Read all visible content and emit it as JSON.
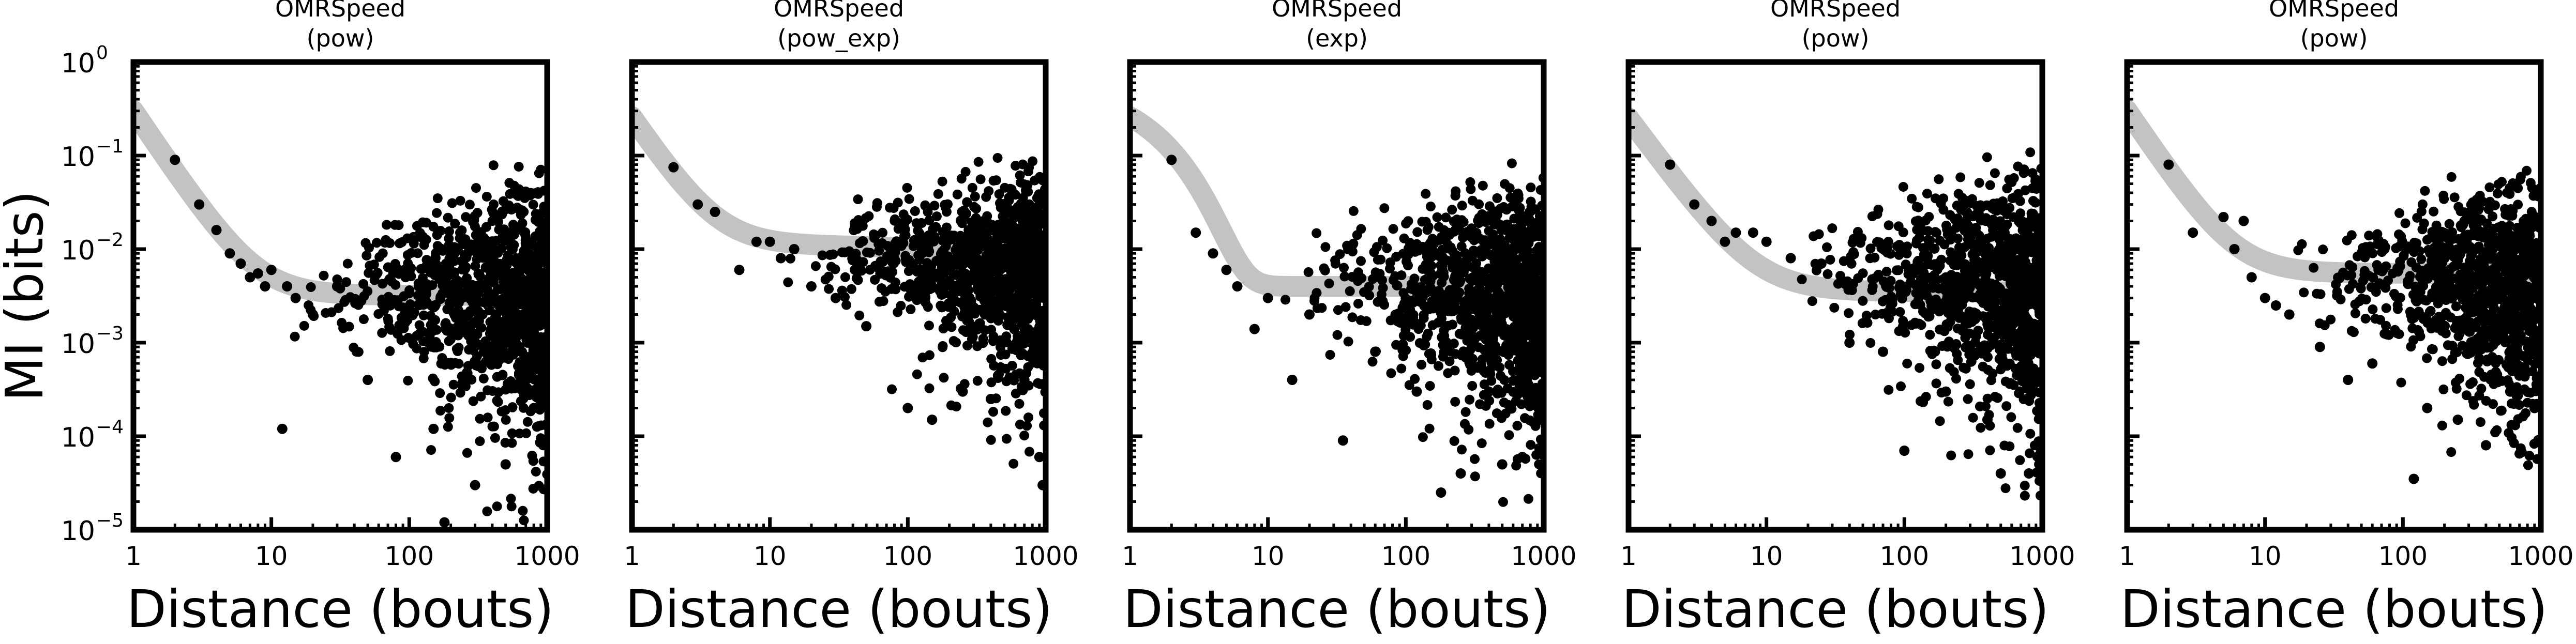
{
  "chart_data": [
    {
      "type": "scatter",
      "title": "OMRSpeed",
      "subtitle": "(pow)",
      "xlabel": "Distance (bouts)",
      "ylabel": "MI (bits)",
      "x_scale": "log",
      "y_scale": "log",
      "xlim": [
        1,
        1000
      ],
      "ylim": [
        1e-05,
        1
      ],
      "x_ticks": [
        "1",
        "10",
        "100",
        "1000"
      ],
      "y_ticks": [
        "10^0",
        "10^-1",
        "10^-2",
        "10^-3",
        "10^-4",
        "10^-5"
      ],
      "grid": false,
      "fit": {
        "form": "pow",
        "a": 0.3,
        "b": 2.2,
        "c": 0.0032
      },
      "scatter": {
        "seed": 11,
        "plateau": 0.0032,
        "spread": 0.45,
        "tail": 0.3
      },
      "points": [
        [
          2,
          0.09
        ],
        [
          3,
          0.03
        ],
        [
          4,
          0.016
        ],
        [
          5,
          0.009
        ],
        [
          6,
          0.007
        ],
        [
          7,
          0.005
        ],
        [
          8,
          0.0055
        ],
        [
          9,
          0.004
        ],
        [
          10,
          0.006
        ],
        [
          12,
          0.00012
        ],
        [
          13,
          0.004
        ],
        [
          15,
          0.003
        ],
        [
          20,
          0.002
        ],
        [
          30,
          0.004
        ],
        [
          50,
          0.0004
        ],
        [
          80,
          6e-05
        ],
        [
          150,
          0.00012
        ],
        [
          180,
          1.2e-05
        ],
        [
          300,
          3e-05
        ],
        [
          500,
          5e-05
        ],
        [
          800,
          0.0002
        ]
      ]
    },
    {
      "type": "scatter",
      "title": "OMRSpeed",
      "subtitle": "(pow_exp)",
      "xlabel": "Distance (bouts)",
      "ylabel": "",
      "x_scale": "log",
      "y_scale": "log",
      "xlim": [
        1,
        1000
      ],
      "ylim": [
        1e-05,
        1
      ],
      "x_ticks": [
        "1",
        "10",
        "100",
        "1000"
      ],
      "y_ticks": [
        "",
        "",
        "",
        "",
        "",
        ""
      ],
      "grid": false,
      "fit": {
        "form": "pow_exp",
        "a": 0.25,
        "b": 2.2,
        "c": 0.011,
        "decay": 1400
      },
      "scatter": {
        "seed": 23,
        "plateau": 0.008,
        "spread": 0.35,
        "tail": 0.35
      },
      "points": [
        [
          2,
          0.075
        ],
        [
          3,
          0.03
        ],
        [
          4,
          0.025
        ],
        [
          6,
          0.006
        ],
        [
          8,
          0.012
        ],
        [
          10,
          0.012
        ],
        [
          12,
          0.008
        ],
        [
          15,
          0.01
        ],
        [
          20,
          0.004
        ],
        [
          30,
          0.003
        ],
        [
          50,
          0.0015
        ],
        [
          100,
          0.0002
        ],
        [
          150,
          0.00015
        ],
        [
          250,
          0.0003
        ],
        [
          400,
          0.00025
        ],
        [
          700,
          0.0004
        ],
        [
          900,
          6e-05
        ],
        [
          950,
          3e-05
        ]
      ]
    },
    {
      "type": "scatter",
      "title": "OMRSpeed",
      "subtitle": "(exp)",
      "xlabel": "Distance (bouts)",
      "ylabel": "",
      "x_scale": "log",
      "y_scale": "log",
      "xlim": [
        1,
        1000
      ],
      "ylim": [
        1e-05,
        1
      ],
      "x_ticks": [
        "1",
        "10",
        "100",
        "1000"
      ],
      "y_ticks": [
        "",
        "",
        "",
        "",
        "",
        ""
      ],
      "grid": false,
      "fit": {
        "form": "exp",
        "a": 0.6,
        "k": 0.85,
        "c": 0.004
      },
      "scatter": {
        "seed": 37,
        "plateau": 0.004,
        "spread": 0.45,
        "tail": 0.35
      },
      "points": [
        [
          2,
          0.09
        ],
        [
          3,
          0.015
        ],
        [
          4,
          0.009
        ],
        [
          5,
          0.006
        ],
        [
          6,
          0.004
        ],
        [
          8,
          0.0014
        ],
        [
          10,
          0.003
        ],
        [
          15,
          0.0004
        ],
        [
          20,
          0.002
        ],
        [
          35,
          9e-05
        ],
        [
          60,
          0.0008
        ],
        [
          120,
          0.0003
        ],
        [
          180,
          2.5e-05
        ],
        [
          250,
          4e-05
        ],
        [
          400,
          0.0003
        ],
        [
          500,
          5e-05
        ],
        [
          700,
          6e-05
        ],
        [
          950,
          0.00015
        ]
      ]
    },
    {
      "type": "scatter",
      "title": "OMRSpeed",
      "subtitle": "(pow)",
      "xlabel": "Distance (bouts)",
      "ylabel": "",
      "x_scale": "log",
      "y_scale": "log",
      "xlim": [
        1,
        1000
      ],
      "ylim": [
        1e-05,
        1
      ],
      "x_ticks": [
        "1",
        "10",
        "100",
        "1000"
      ],
      "y_ticks": [
        "",
        "",
        "",
        "",
        "",
        ""
      ],
      "grid": false,
      "fit": {
        "form": "pow",
        "a": 0.25,
        "b": 2.0,
        "c": 0.0035
      },
      "scatter": {
        "seed": 53,
        "plateau": 0.005,
        "spread": 0.45,
        "tail": 0.35
      },
      "points": [
        [
          2,
          0.08
        ],
        [
          3,
          0.03
        ],
        [
          4,
          0.02
        ],
        [
          5,
          0.012
        ],
        [
          6,
          0.015
        ],
        [
          8,
          0.015
        ],
        [
          10,
          0.012
        ],
        [
          15,
          0.008
        ],
        [
          25,
          0.007
        ],
        [
          40,
          0.001
        ],
        [
          70,
          0.0008
        ],
        [
          100,
          7e-05
        ],
        [
          200,
          0.0003
        ],
        [
          400,
          0.00015
        ],
        [
          500,
          4e-05
        ],
        [
          800,
          4e-05
        ],
        [
          950,
          5e-05
        ]
      ]
    },
    {
      "type": "scatter",
      "title": "OMRSpeed",
      "subtitle": "(pow)",
      "xlabel": "Distance (bouts)",
      "ylabel": "",
      "x_scale": "log",
      "y_scale": "log",
      "xlim": [
        1,
        1000
      ],
      "ylim": [
        1e-05,
        1
      ],
      "x_ticks": [
        "1",
        "10",
        "100",
        "1000"
      ],
      "y_ticks": [
        "",
        "",
        "",
        "",
        "",
        ""
      ],
      "grid": false,
      "fit": {
        "form": "pow",
        "a": 0.3,
        "b": 2.2,
        "c": 0.0055
      },
      "scatter": {
        "seed": 71,
        "plateau": 0.005,
        "spread": 0.4,
        "tail": 0.35
      },
      "points": [
        [
          2,
          0.08
        ],
        [
          3,
          0.015
        ],
        [
          5,
          0.022
        ],
        [
          6,
          0.01
        ],
        [
          7,
          0.02
        ],
        [
          8,
          0.005
        ],
        [
          10,
          0.003
        ],
        [
          12,
          0.0025
        ],
        [
          15,
          0.002
        ],
        [
          25,
          0.0009
        ],
        [
          40,
          0.0004
        ],
        [
          60,
          0.0006
        ],
        [
          120,
          3.5e-05
        ],
        [
          150,
          0.0002
        ],
        [
          250,
          0.00015
        ],
        [
          400,
          8e-05
        ],
        [
          600,
          0.0003
        ],
        [
          900,
          0.0002
        ]
      ]
    }
  ]
}
